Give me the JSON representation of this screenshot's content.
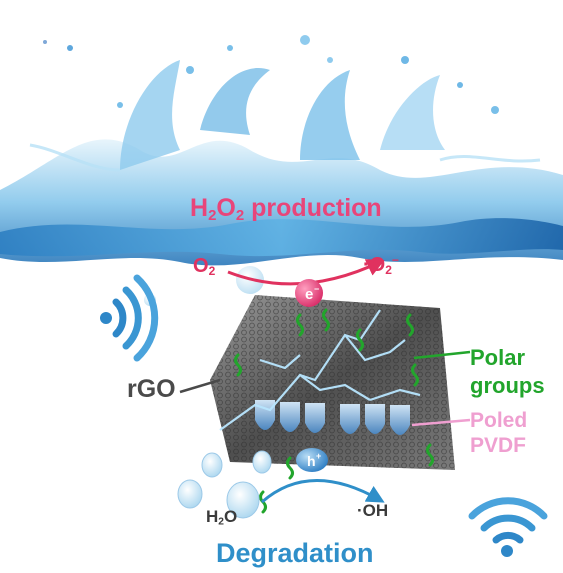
{
  "labels": {
    "production": {
      "pre": "H",
      "sub1": "2",
      "mid": "O",
      "sub2": "2",
      "post": " production"
    },
    "degradation": "Degradation",
    "o2_left": {
      "base": "O",
      "sub": "2"
    },
    "o2_right": {
      "pre": "·O",
      "sub": "2",
      "sup": "−"
    },
    "polar_line1": "Polar",
    "polar_line2": "groups",
    "poled_line1": "Poled",
    "poled_line2": "PVDF",
    "rgo": "rGO",
    "h2o": {
      "pre": "H",
      "sub": "2",
      "post": "O"
    },
    "oh": "·OH",
    "electron": "e",
    "hole": "h",
    "electron_sign": "−",
    "hole_sign": "+"
  },
  "colors": {
    "production": "#e8457a",
    "degradation": "#2f8fc9",
    "polar": "#22a52c",
    "poled": "#ef9fd0",
    "rgo": "#4a4a4a",
    "water": "#2e87c8",
    "electron": "#e8457a",
    "hole": "#3f8fcf"
  },
  "icons": [
    "water-splash",
    "wireless-signal-icon",
    "lightning-bolt",
    "graphene-sheet",
    "pvdf-dipole",
    "polar-group-squiggle",
    "water-droplet"
  ]
}
